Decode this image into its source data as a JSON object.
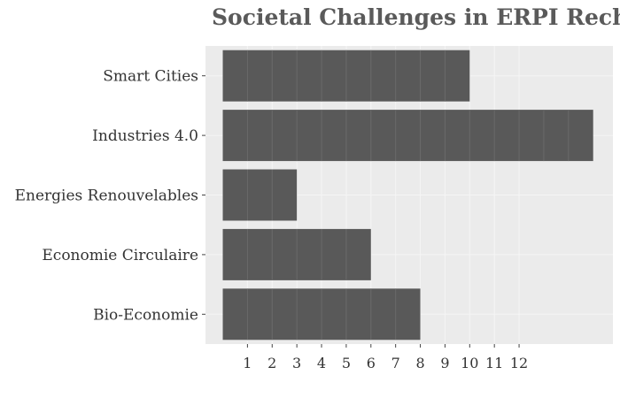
{
  "chart_data": {
    "type": "bar",
    "orientation": "horizontal",
    "title": "Societal Challenges in ERPI Recherche",
    "xlabel": "",
    "ylabel": "",
    "categories": [
      "Smart Cities",
      "Industries 4.0",
      "Energies Renouvelables",
      "Economie Circulaire",
      "Bio-Economie"
    ],
    "values": [
      10,
      15,
      3,
      6,
      8
    ],
    "x_ticks": [
      1,
      2,
      3,
      4,
      5,
      6,
      7,
      8,
      9,
      10,
      11,
      12
    ],
    "xlim": [
      -0.7,
      15.8
    ],
    "grid": true,
    "legend": "none",
    "colors": {
      "bar": "#595959",
      "plot_background": "#ebebeb",
      "grid": "#f5f5f5",
      "title": "#5a5a5a"
    }
  }
}
